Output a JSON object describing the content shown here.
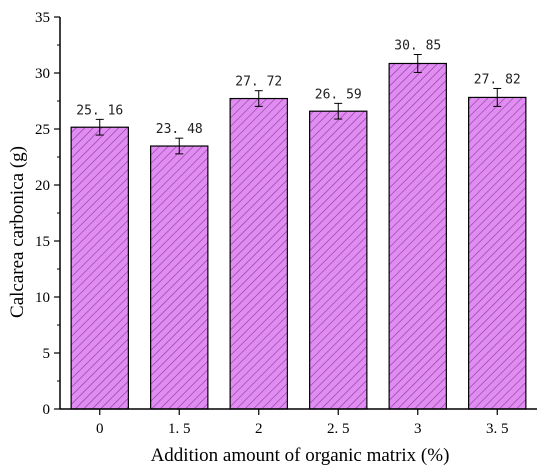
{
  "chart_data": {
    "type": "bar",
    "categories": [
      "0",
      "1.5",
      "2",
      "2.5",
      "3",
      "3.5"
    ],
    "category_labels": [
      "0",
      "1. 5",
      "2",
      "2. 5",
      "3",
      "3. 5"
    ],
    "values": [
      25.16,
      23.48,
      27.72,
      26.59,
      30.85,
      27.82
    ],
    "value_labels": [
      "25. 16",
      "23. 48",
      "27. 72",
      "26. 59",
      "30. 85",
      "27. 82"
    ],
    "errors": [
      0.7,
      0.7,
      0.7,
      0.7,
      0.8,
      0.8
    ],
    "xlabel": "Addition amount of organic matrix (%)",
    "ylabel": "Calcarea carbonica (g)",
    "ylim": [
      0,
      35
    ],
    "yticks": [
      0,
      5,
      10,
      15,
      20,
      25,
      30,
      35
    ],
    "grid": false,
    "legend": false,
    "colors": {
      "bar_fill": "#e08cf0",
      "hatch": "#8a3aa0",
      "bar_stroke": "#000000"
    }
  }
}
